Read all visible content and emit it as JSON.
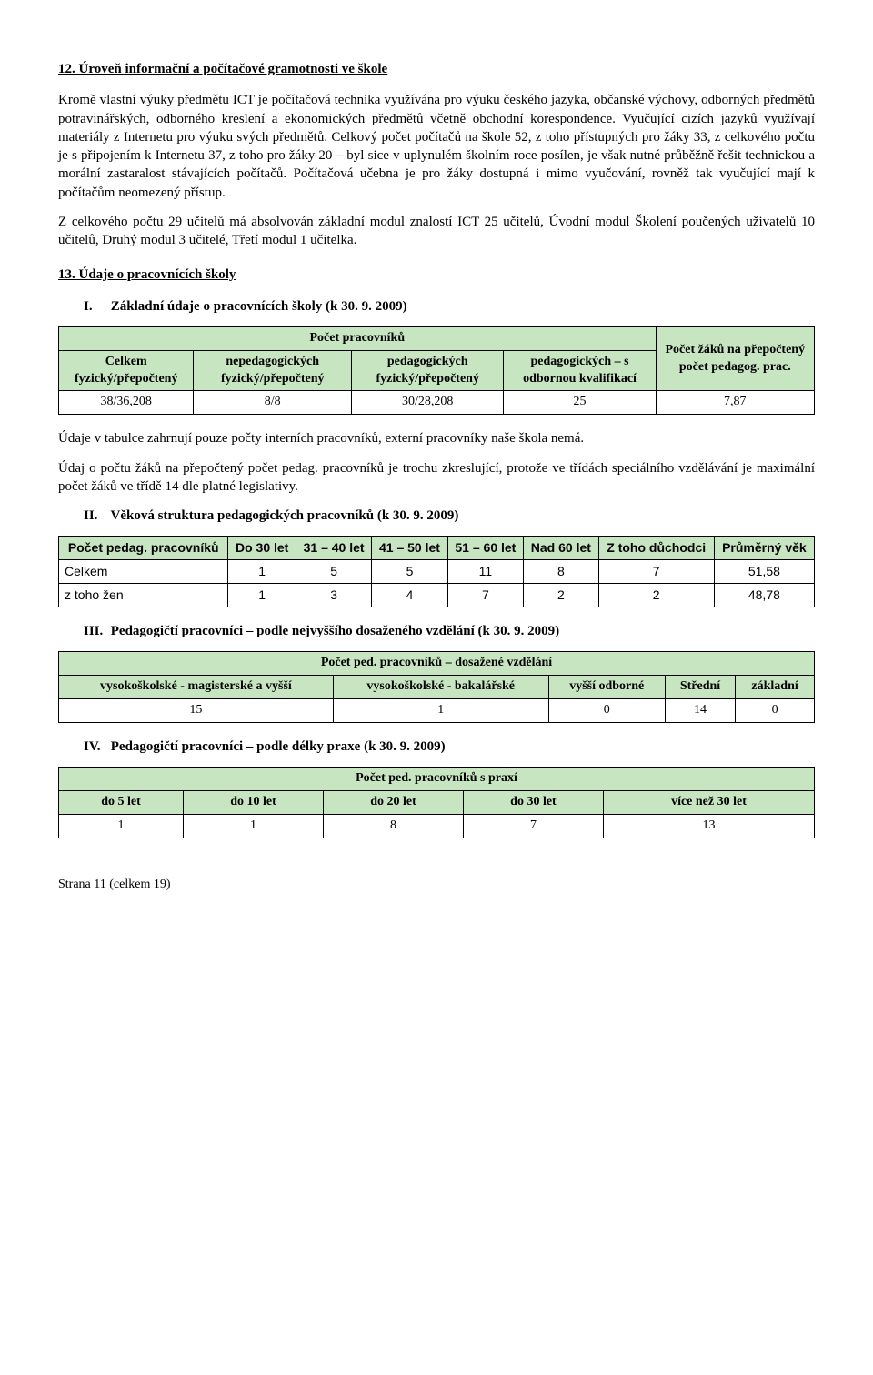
{
  "section12": {
    "heading": "12. Úroveň informační a počítačové gramotnosti ve škole",
    "p1": "Kromě vlastní výuky předmětu ICT je počítačová technika využívána pro výuku českého jazyka, občanské výchovy, odborných předmětů potravinářských, odborného kreslení a ekonomických předmětů včetně obchodní korespondence. Vyučující cizích jazyků využívají materiály z Internetu pro výuku svých předmětů. Celkový počet počítačů na škole 52, z toho přístupných pro žáky 33, z celkového počtu je s připojením k Internetu 37, z toho pro žáky 20 – byl sice v uplynulém školním roce posílen, je však nutné průběžně řešit technickou a morální zastaralost stávajících počítačů. Počítačová učebna je pro žáky dostupná i mimo vyučování, rovněž tak vyučující mají k počítačům neomezený přístup.",
    "p2": "Z celkového počtu 29 učitelů má absolvován základní modul znalostí ICT 25 učitelů, Úvodní modul Školení poučených uživatelů 10 učitelů, Druhý modul 3 učitelé, Třetí modul 1 učitelka."
  },
  "section13": {
    "heading": "13. Údaje o pracovnících školy",
    "item1_label": "I.",
    "item1_text": "Základní údaje o pracovnících školy (k 30. 9. 2009)",
    "table1": {
      "header_top": "Počet pracovníků",
      "header_right": "Počet žáků na přepočtený počet pedagog. prac.",
      "col1": "Celkem fyzický/přepočtený",
      "col2": "nepedagogických fyzický/přepočtený",
      "col3": "pedagogických fyzický/přepočtený",
      "col4": "pedagogických – s odbornou kvalifikací",
      "row": [
        "38/36,208",
        "8/8",
        "30/28,208",
        "25",
        "7,87"
      ],
      "header_bg": "#c8e5c1"
    },
    "p_after_t1a": "Údaje v tabulce zahrnují pouze počty interních pracovníků, externí pracovníky naše škola nemá.",
    "p_after_t1b": "Údaj o počtu žáků na přepočtený počet pedag. pracovníků je trochu zkreslující, protože ve třídách speciálního vzdělávání je maximální počet žáků ve třídě 14 dle platné legislativy.",
    "item2_label": "II.",
    "item2_text": "Věková struktura pedagogických pracovníků (k 30. 9. 2009)",
    "table2": {
      "cols": [
        "Počet pedag. pracovníků",
        "Do 30 let",
        "31 – 40 let",
        "41 – 50 let",
        "51 – 60 let",
        "Nad 60 let",
        "Z toho důchodci",
        "Průměrný věk"
      ],
      "rows": [
        {
          "label": "Celkem",
          "vals": [
            "1",
            "5",
            "5",
            "11",
            "8",
            "7",
            "51,58"
          ]
        },
        {
          "label": "z toho žen",
          "vals": [
            "1",
            "3",
            "4",
            "7",
            "2",
            "2",
            "48,78"
          ]
        }
      ]
    },
    "item3_label": "III.",
    "item3_text": "Pedagogičtí pracovníci – podle nejvyššího dosaženého vzdělání (k 30. 9. 2009)",
    "table3": {
      "header_top": "Počet ped. pracovníků – dosažené vzdělání",
      "cols": [
        "vysokoškolské - magisterské a vyšší",
        "vysokoškolské - bakalářské",
        "vyšší odborné",
        "Střední",
        "základní"
      ],
      "row": [
        "15",
        "1",
        "0",
        "14",
        "0"
      ]
    },
    "item4_label": "IV.",
    "item4_text": "Pedagogičtí pracovníci – podle délky praxe (k 30. 9. 2009)",
    "table4": {
      "header_top": "Počet ped. pracovníků s praxí",
      "cols": [
        "do 5 let",
        "do 10 let",
        "do 20 let",
        "do 30 let",
        "více než 30 let"
      ],
      "row": [
        "1",
        "1",
        "8",
        "7",
        "13"
      ]
    }
  },
  "footer": "Strana 11 (celkem 19)"
}
